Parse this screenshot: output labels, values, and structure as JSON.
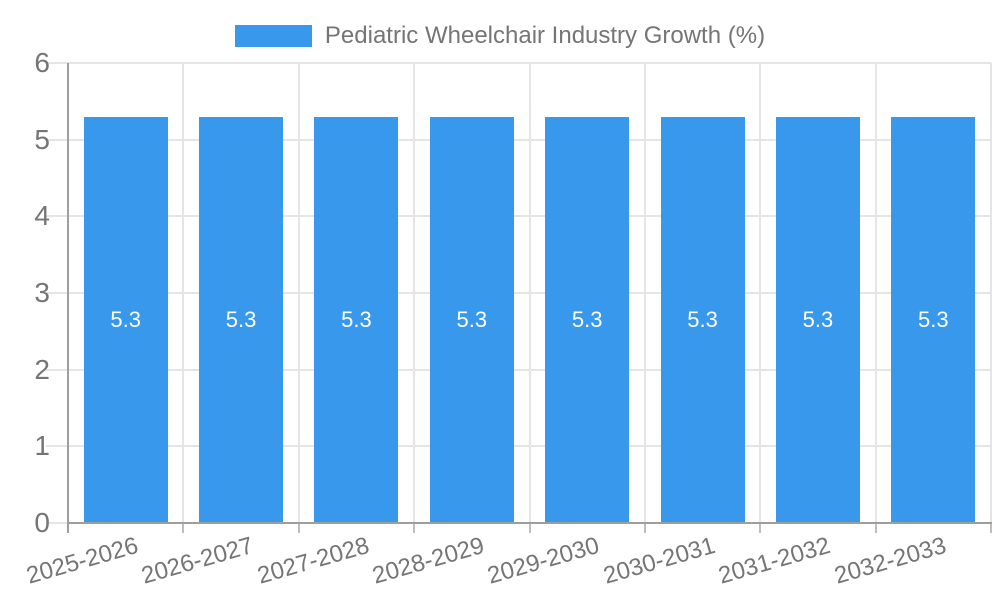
{
  "legend": {
    "label": "Pediatric Wheelchair Industry Growth (%)",
    "position": "top"
  },
  "colors": {
    "bar": "#3898EC",
    "grid": "#E5E5E5",
    "tick": "#BDBDBD",
    "axis": "#9E9E9E",
    "text": "#757575",
    "bar_label": "#FFFFFF",
    "background": "#FFFFFF"
  },
  "chart_data": {
    "type": "bar",
    "title": "Pediatric Wheelchair Industry Growth (%)",
    "categories": [
      "2025-2026",
      "2026-2027",
      "2027-2028",
      "2028-2029",
      "2029-2030",
      "2030-2031",
      "2031-2032",
      "2032-2033"
    ],
    "values": [
      5.3,
      5.3,
      5.3,
      5.3,
      5.3,
      5.3,
      5.3,
      5.3
    ],
    "bar_value_labels": [
      "5.3",
      "5.3",
      "5.3",
      "5.3",
      "5.3",
      "5.3",
      "5.3",
      "5.3"
    ],
    "xlabel": "",
    "ylabel": "",
    "ylim": [
      0,
      6
    ],
    "yticks": [
      0,
      1,
      2,
      3,
      4,
      5,
      6
    ],
    "grid": true,
    "legend_position": "top",
    "x_tick_rotation_deg": -16
  }
}
